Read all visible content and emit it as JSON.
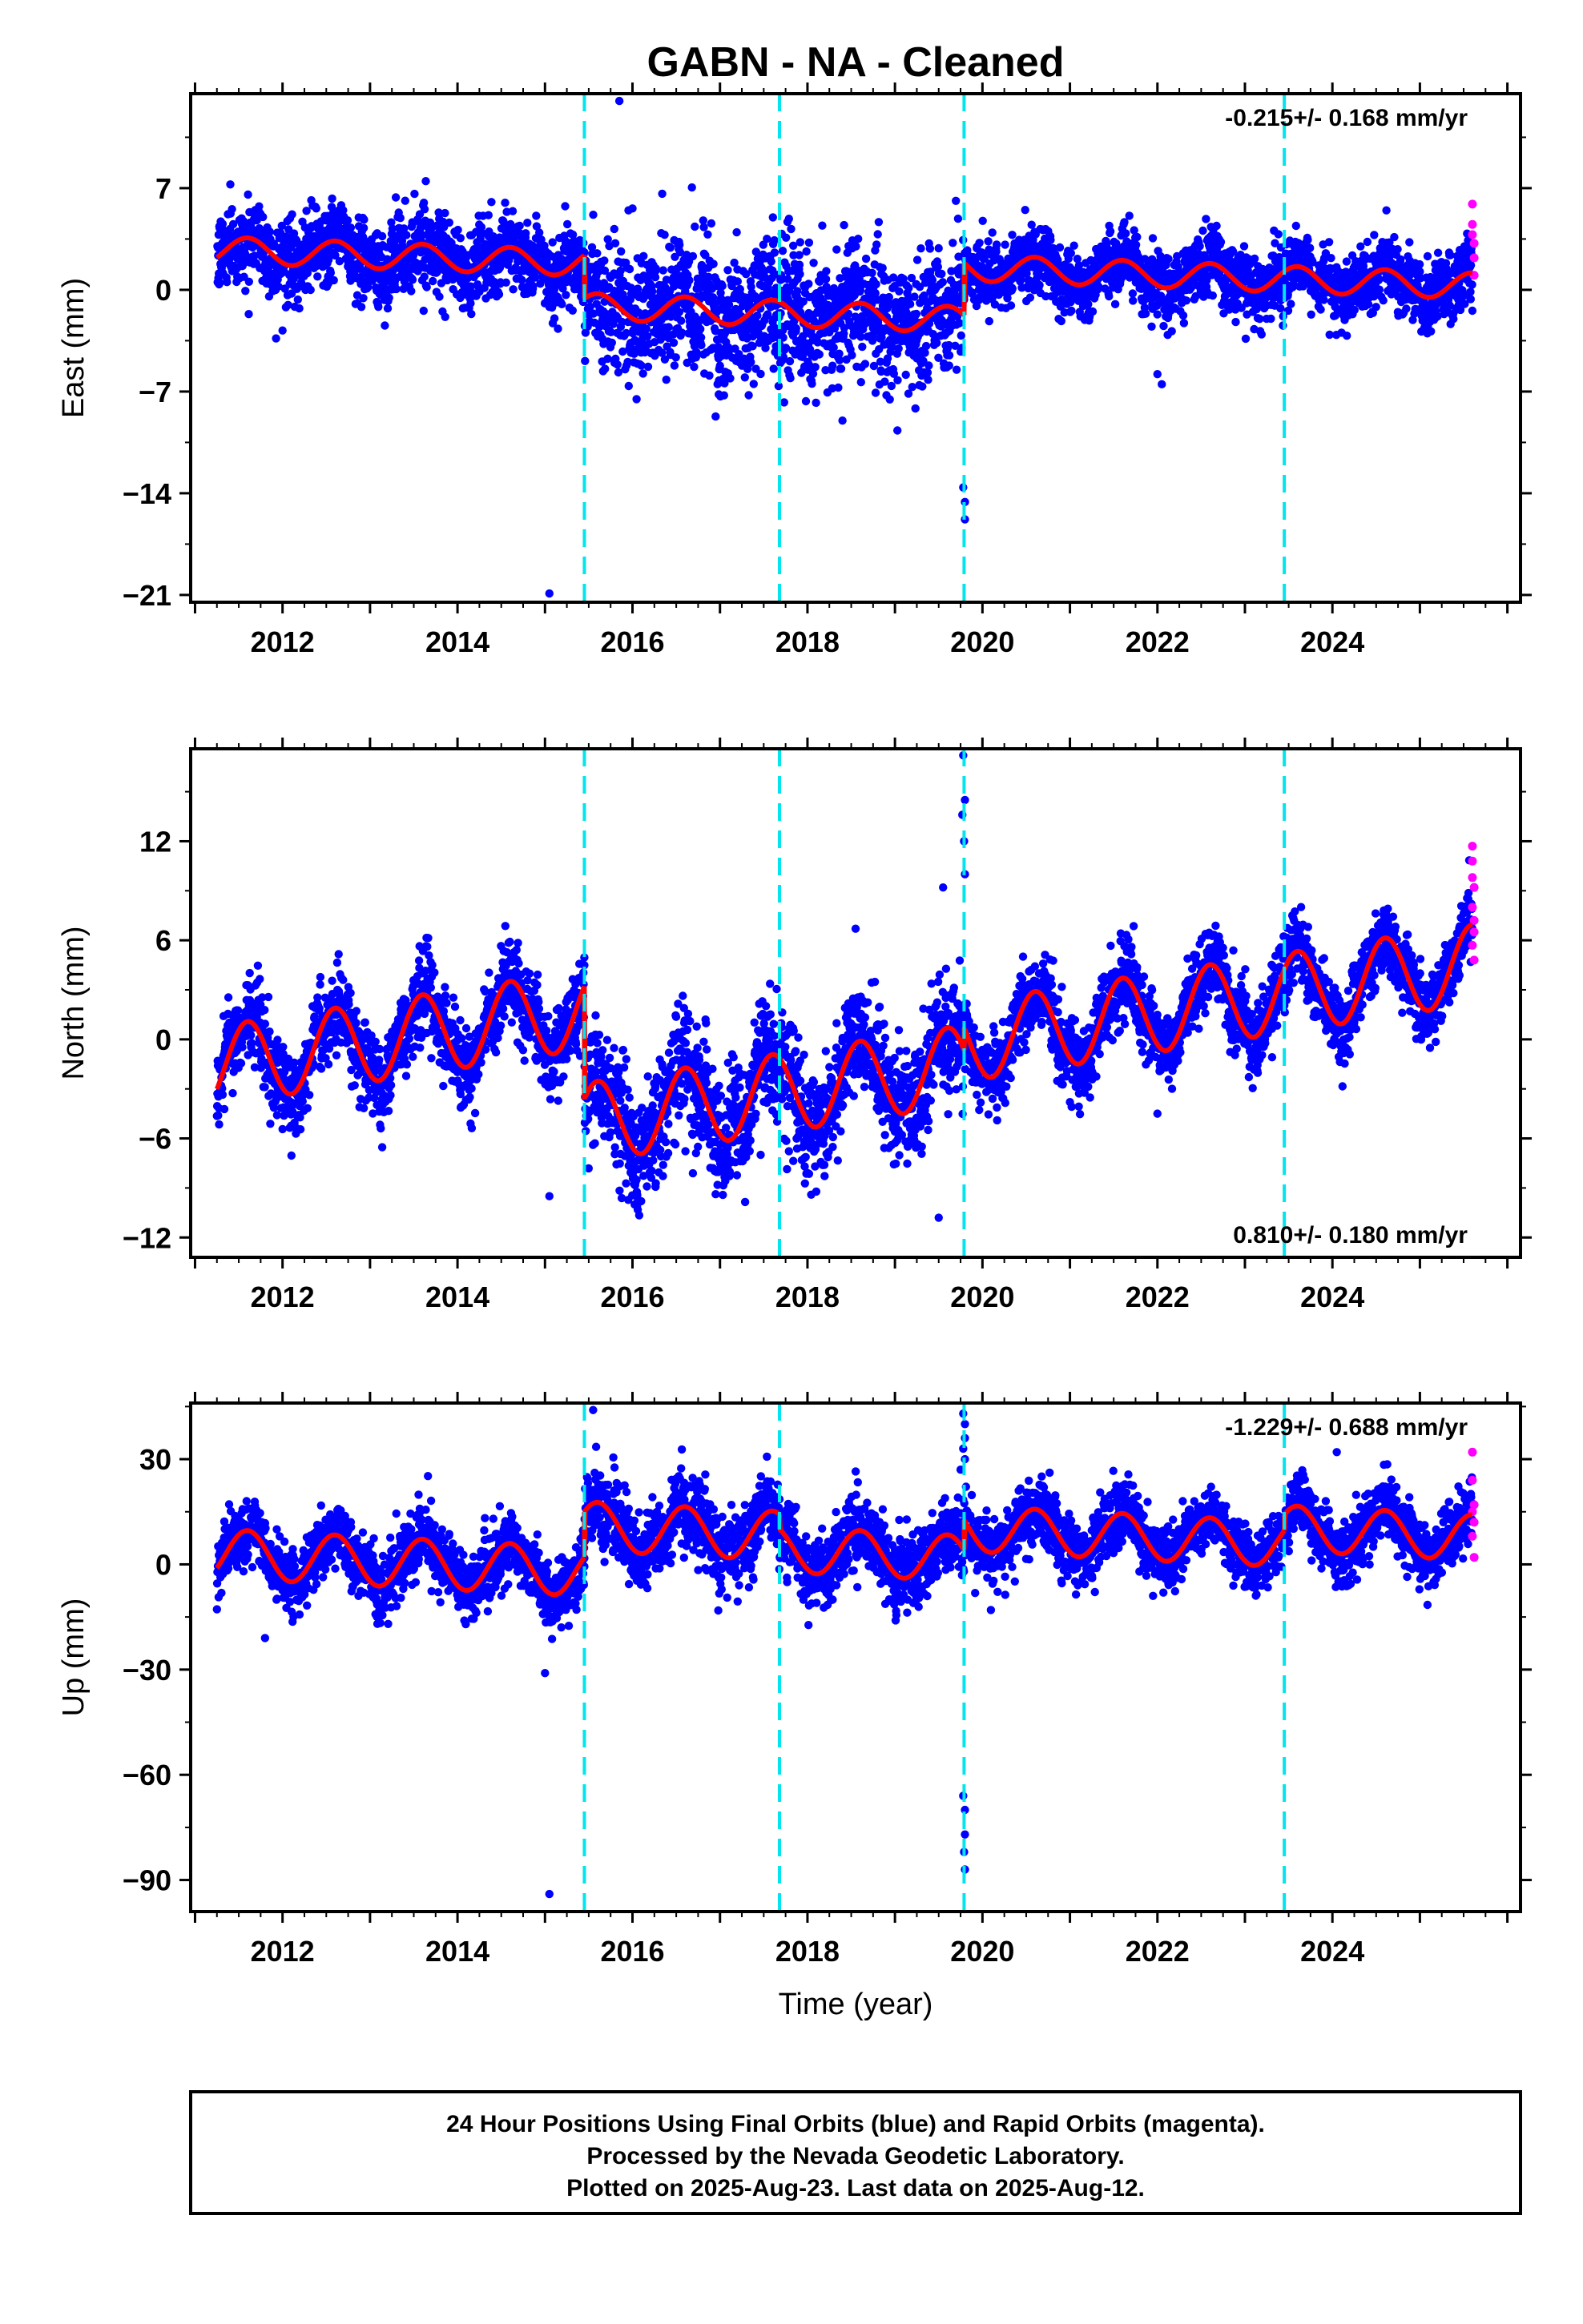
{
  "title": "GABN  - NA - Cleaned",
  "x_axis_label": "Time (year)",
  "colors": {
    "final_orbits": "#0000ff",
    "rapid_orbits": "#ff00ff",
    "model_fit": "#ff0000",
    "equipment_change": "#00e5ee"
  },
  "footer": {
    "line1": "24 Hour Positions Using Final Orbits (blue) and Rapid Orbits (magenta).",
    "line2": "Processed by the Nevada Geodetic Laboratory.",
    "line3": "Plotted on 2025-Aug-23. Last data on 2025-Aug-12."
  },
  "chart_data": [
    {
      "type": "scatter",
      "ylabel": "East (mm)",
      "xlim": [
        2010.95,
        2026.15
      ],
      "ylim": [
        -21.5,
        13.5
      ],
      "yticks": [
        7,
        0,
        -7,
        -14,
        -21
      ],
      "xticks": [
        2012,
        2014,
        2016,
        2018,
        2020,
        2022,
        2024
      ],
      "rate_label": "-0.215+/- 0.168 mm/yr",
      "rate_position": "top-right",
      "breaks": [
        2015.45,
        2017.68,
        2019.79,
        2023.45
      ],
      "fit_segments": [
        {
          "x0": 2011.25,
          "x1": 2015.45,
          "offset": 2.3,
          "amp": 0.9
        },
        {
          "x0": 2015.45,
          "x1": 2019.79,
          "offset": -1.6,
          "amp": 0.9
        },
        {
          "x0": 2019.79,
          "x1": 2025.6,
          "offset": 0.9,
          "amp": 0.9
        }
      ],
      "trend_mm_per_yr": -0.215,
      "scatter_sd": [
        1.3,
        2.2,
        1.1
      ],
      "outliers": [
        [
          2015.85,
          13.0
        ],
        [
          2015.05,
          -20.9
        ],
        [
          2016.0,
          5.6
        ],
        [
          2019.78,
          -13.6
        ],
        [
          2019.8,
          -14.6
        ],
        [
          2019.8,
          -15.8
        ],
        [
          2022.0,
          -5.8
        ],
        [
          2022.05,
          -6.5
        ],
        [
          2012.0,
          -2.8
        ],
        [
          2018.4,
          -9.0
        ]
      ],
      "rapid_points": [
        [
          2025.6,
          5.9
        ],
        [
          2025.6,
          4.5
        ],
        [
          2025.6,
          3.8
        ],
        [
          2025.62,
          3.2
        ],
        [
          2025.62,
          2.2
        ],
        [
          2025.62,
          1.0
        ]
      ]
    },
    {
      "type": "scatter",
      "ylabel": "North (mm)",
      "xlim": [
        2010.95,
        2026.15
      ],
      "ylim": [
        -13.2,
        17.6
      ],
      "yticks": [
        12,
        6,
        0,
        -6,
        -12
      ],
      "xticks": [
        2012,
        2014,
        2016,
        2018,
        2020,
        2022,
        2024
      ],
      "rate_label": "0.810+/- 0.180 mm/yr",
      "rate_position": "bottom-right",
      "breaks": [
        2015.45,
        2017.68,
        2019.79,
        2023.45
      ],
      "fit_segments": [
        {
          "x0": 2011.25,
          "x1": 2015.45,
          "offset": 0.1,
          "amp": 2.4
        },
        {
          "x0": 2015.45,
          "x1": 2019.79,
          "offset": -3.3,
          "amp": 2.4
        },
        {
          "x0": 2019.79,
          "x1": 2025.6,
          "offset": 2.2,
          "amp": 2.4
        }
      ],
      "trend_mm_per_yr": 0.81,
      "scatter_sd": [
        1.2,
        1.8,
        1.1
      ],
      "outliers": [
        [
          2019.78,
          17.2
        ],
        [
          2019.8,
          14.5
        ],
        [
          2019.77,
          13.6
        ],
        [
          2019.79,
          12.0
        ],
        [
          2019.8,
          10.0
        ],
        [
          2019.55,
          9.2
        ],
        [
          2015.05,
          -9.5
        ],
        [
          2018.55,
          6.7
        ],
        [
          2019.5,
          -10.8
        ],
        [
          2021.0,
          -3.8
        ],
        [
          2022.0,
          -4.5
        ]
      ],
      "rapid_points": [
        [
          2025.6,
          11.7
        ],
        [
          2025.6,
          10.8
        ],
        [
          2025.6,
          9.8
        ],
        [
          2025.62,
          9.2
        ],
        [
          2025.6,
          8.0
        ],
        [
          2025.62,
          7.2
        ],
        [
          2025.62,
          6.5
        ],
        [
          2025.6,
          5.7
        ],
        [
          2025.62,
          4.8
        ]
      ]
    },
    {
      "type": "scatter",
      "ylabel": "Up (mm)",
      "xlim": [
        2010.95,
        2026.15
      ],
      "ylim": [
        -99,
        46
      ],
      "yticks": [
        30,
        0,
        -30,
        -60,
        -90
      ],
      "xticks": [
        2012,
        2014,
        2016,
        2018,
        2020,
        2022,
        2024
      ],
      "rate_label": "-1.229+/- 0.688 mm/yr",
      "rate_position": "top-right",
      "breaks": [
        2015.45,
        2017.68,
        2019.79,
        2023.45
      ],
      "fit_segments": [
        {
          "x0": 2011.25,
          "x1": 2015.45,
          "offset": 0.5,
          "amp": 7.0
        },
        {
          "x0": 2015.45,
          "x1": 2017.68,
          "offset": 9.5,
          "amp": 7.0
        },
        {
          "x0": 2017.68,
          "x1": 2019.79,
          "offset": 3.0,
          "amp": 6.5
        },
        {
          "x0": 2019.79,
          "x1": 2023.45,
          "offset": 8.0,
          "amp": 6.5
        },
        {
          "x0": 2023.45,
          "x1": 2025.6,
          "offset": 9.0,
          "amp": 6.5
        }
      ],
      "trend_mm_per_yr": -1.229,
      "scatter_sd": [
        4.5,
        5.5,
        5.0,
        4.5,
        4.5
      ],
      "outliers": [
        [
          2015.55,
          44.0
        ],
        [
          2019.78,
          43.0
        ],
        [
          2019.8,
          40.0
        ],
        [
          2019.8,
          36.0
        ],
        [
          2019.78,
          33.0
        ],
        [
          2019.8,
          30.0
        ],
        [
          2019.75,
          27.0
        ],
        [
          2019.78,
          -66.0
        ],
        [
          2019.8,
          -70.0
        ],
        [
          2019.8,
          -77.0
        ],
        [
          2019.79,
          -82.0
        ],
        [
          2019.8,
          -87.0
        ],
        [
          2015.05,
          -94.0
        ],
        [
          2015.0,
          -31.0
        ],
        [
          2011.8,
          -21.0
        ],
        [
          2024.05,
          32.0
        ]
      ],
      "rapid_points": [
        [
          2025.6,
          32.0
        ],
        [
          2025.6,
          24.0
        ],
        [
          2025.62,
          17.0
        ],
        [
          2025.6,
          15.0
        ],
        [
          2025.62,
          12.0
        ],
        [
          2025.6,
          8.0
        ],
        [
          2025.62,
          2.0
        ]
      ]
    }
  ]
}
